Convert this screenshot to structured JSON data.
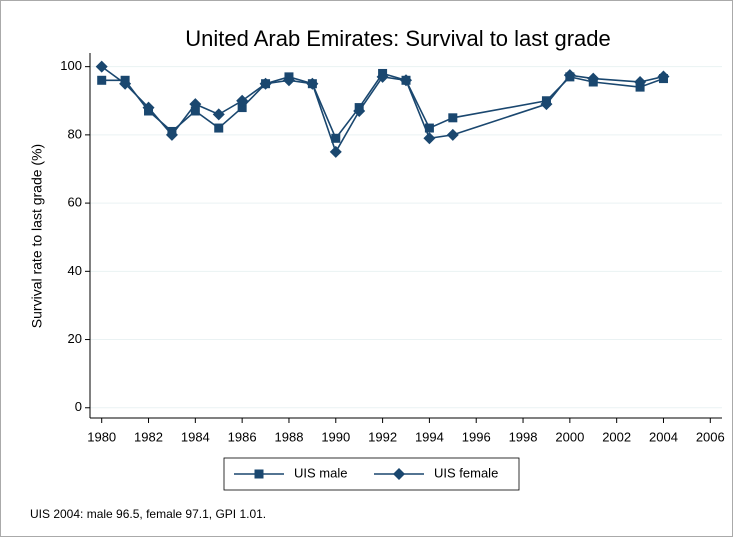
{
  "chart_data": {
    "type": "line",
    "title": "United Arab Emirates: Survival to last grade",
    "y_label": "Survival rate to last grade (%)",
    "note": "UIS 2004: male 96.5, female 97.1, GPI 1.01.",
    "x": [
      1980,
      1981,
      1982,
      1983,
      1984,
      1985,
      1986,
      1987,
      1988,
      1989,
      1990,
      1991,
      1992,
      1993,
      1994,
      1995,
      1999,
      2000,
      2001,
      2003,
      2004
    ],
    "series": [
      {
        "name": "UIS male",
        "color": "#1a476f",
        "marker": "square",
        "values": [
          96,
          96,
          87,
          81,
          87,
          82,
          88,
          95,
          97,
          95,
          79,
          88,
          98,
          96,
          82,
          85,
          90,
          97,
          95.5,
          94,
          96.5
        ]
      },
      {
        "name": "UIS female",
        "color": "#1a476f",
        "marker": "diamond",
        "values": [
          100,
          95,
          88,
          80,
          89,
          86,
          90,
          95,
          96,
          95,
          75,
          87,
          97,
          96,
          79,
          80,
          89,
          97.5,
          96.5,
          95.5,
          97.1
        ]
      }
    ],
    "xlim": [
      1979.5,
      2006.5
    ],
    "xticks": [
      1980,
      1982,
      1984,
      1986,
      1988,
      1990,
      1992,
      1994,
      1996,
      1998,
      2000,
      2002,
      2004,
      2006
    ],
    "ylim": [
      -3,
      104
    ],
    "yticks": [
      0,
      20,
      40,
      60,
      80,
      100
    ],
    "grid": true
  }
}
